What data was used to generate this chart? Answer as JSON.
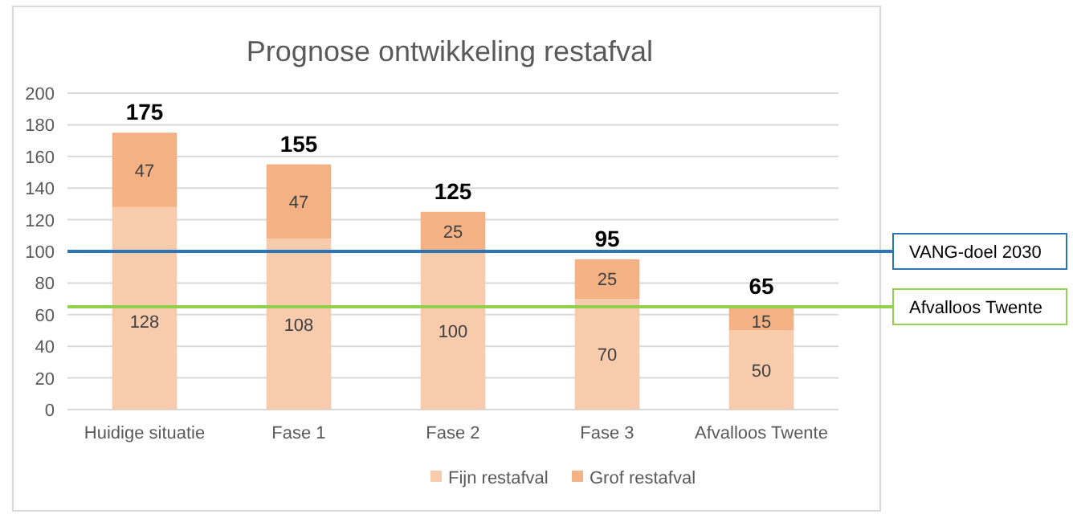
{
  "chart_data": {
    "type": "bar",
    "title": "Prognose ontwikkeling restafval",
    "categories": [
      "Huidige situatie",
      "Fase 1",
      "Fase 2",
      "Fase 3",
      "Afvalloos Twente"
    ],
    "series": [
      {
        "name": "Fijn restafval",
        "color": "#f8cbad",
        "values": [
          128,
          108,
          100,
          70,
          50
        ]
      },
      {
        "name": "Grof restafval",
        "color": "#f4b183",
        "values": [
          47,
          47,
          25,
          25,
          15
        ]
      }
    ],
    "stacked": true,
    "data_labels": true,
    "totals": [
      "175",
      "155",
      "125",
      "95",
      "65"
    ],
    "ylim": [
      0,
      200
    ],
    "yticks": [
      0,
      20,
      40,
      60,
      80,
      100,
      120,
      140,
      160,
      180,
      200
    ],
    "grid": "y",
    "legend": "bottom",
    "ref_lines": [
      {
        "axis": "y",
        "value": 100,
        "label": "VANG-doel 2030",
        "color": "#2e75b6"
      },
      {
        "axis": "y",
        "value": 65,
        "label": "Afvalloos Twente",
        "color": "#92d050"
      }
    ]
  }
}
